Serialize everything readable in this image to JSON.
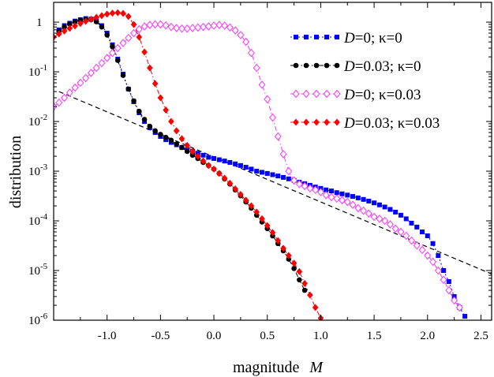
{
  "chart_data": {
    "type": "line",
    "xlabel": "magnitude",
    "xlabel_var": "M",
    "ylabel": "distribution",
    "yscale": "log",
    "xlim": [
      -1.5,
      2.6
    ],
    "ylim": [
      1e-06,
      2.5
    ],
    "xticks": [
      -1.0,
      -0.5,
      0.0,
      0.5,
      1.0,
      1.5,
      2.0,
      2.5
    ],
    "xtick_labels": [
      "-1.0",
      "-0.5",
      "0.0",
      "0.5",
      "1.0",
      "1.5",
      "2.0",
      "2.5"
    ],
    "yticks": [
      1e-06,
      1e-05,
      0.0001,
      0.001,
      0.01,
      0.1,
      1
    ],
    "ytick_labels": [
      {
        "base": "10",
        "exp": "-6"
      },
      {
        "base": "10",
        "exp": "-5"
      },
      {
        "base": "10",
        "exp": "-4"
      },
      {
        "base": "10",
        "exp": "-3"
      },
      {
        "base": "10",
        "exp": "-2"
      },
      {
        "base": "10",
        "exp": "-1"
      },
      {
        "base": "1",
        "exp": ""
      }
    ],
    "grid": false,
    "legend_position": "top-right",
    "series": [
      {
        "name": "D=0; κ=0",
        "legend": {
          "var": "D",
          "rest": "=0; κ=0"
        },
        "color": "#0000ff",
        "marker": "square",
        "linestyle": "dotted",
        "x": [
          -1.45,
          -1.4,
          -1.35,
          -1.3,
          -1.25,
          -1.2,
          -1.15,
          -1.1,
          -1.05,
          -1.0,
          -0.95,
          -0.9,
          -0.85,
          -0.8,
          -0.75,
          -0.7,
          -0.65,
          -0.6,
          -0.55,
          -0.5,
          -0.45,
          -0.4,
          -0.35,
          -0.3,
          -0.25,
          -0.2,
          -0.15,
          -0.1,
          -0.05,
          0.0,
          0.05,
          0.1,
          0.15,
          0.2,
          0.25,
          0.3,
          0.35,
          0.4,
          0.45,
          0.5,
          0.55,
          0.6,
          0.65,
          0.7,
          0.75,
          0.8,
          0.85,
          0.9,
          0.95,
          1.0,
          1.05,
          1.1,
          1.15,
          1.2,
          1.25,
          1.3,
          1.35,
          1.4,
          1.45,
          1.5,
          1.55,
          1.6,
          1.65,
          1.7,
          1.75,
          1.8,
          1.85,
          1.9,
          1.95,
          2.0,
          2.05,
          2.1,
          2.15,
          2.2,
          2.25,
          2.3,
          2.35
        ],
        "y": [
          0.7,
          0.85,
          0.95,
          1.05,
          1.12,
          1.18,
          1.15,
          1.05,
          0.85,
          0.6,
          0.35,
          0.18,
          0.09,
          0.045,
          0.025,
          0.015,
          0.01,
          0.0075,
          0.006,
          0.005,
          0.0043,
          0.0038,
          0.0034,
          0.003,
          0.0027,
          0.0025,
          0.0023,
          0.0021,
          0.0019,
          0.0018,
          0.0017,
          0.0016,
          0.0015,
          0.0014,
          0.0013,
          0.0012,
          0.0011,
          0.001,
          0.00095,
          0.0009,
          0.00085,
          0.0008,
          0.00075,
          0.0007,
          0.00065,
          0.0006,
          0.00056,
          0.00052,
          0.00048,
          0.00045,
          0.00042,
          0.0004,
          0.00037,
          0.00035,
          0.00033,
          0.00031,
          0.00029,
          0.00027,
          0.00025,
          0.00023,
          0.00021,
          0.00019,
          0.00017,
          0.00015,
          0.00013,
          0.00011,
          9e-05,
          7.5e-05,
          6e-05,
          5e-05,
          3.5e-05,
          2e-05,
          1e-05,
          6e-06,
          3e-06,
          1.8e-06,
          1.2e-06
        ]
      },
      {
        "name": "D=0.03; κ=0",
        "legend": {
          "var": "D",
          "rest": "=0.03; κ=0"
        },
        "color": "#000000",
        "marker": "circle",
        "linestyle": "dashdotdot",
        "x": [
          -1.45,
          -1.4,
          -1.35,
          -1.3,
          -1.25,
          -1.2,
          -1.15,
          -1.1,
          -1.05,
          -1.0,
          -0.95,
          -0.9,
          -0.85,
          -0.8,
          -0.75,
          -0.7,
          -0.65,
          -0.6,
          -0.55,
          -0.5,
          -0.45,
          -0.4,
          -0.35,
          -0.3,
          -0.25,
          -0.2,
          -0.15,
          -0.1,
          -0.05,
          0.0,
          0.05,
          0.1,
          0.15,
          0.2,
          0.25,
          0.3,
          0.35,
          0.4,
          0.45,
          0.5,
          0.55,
          0.6,
          0.65,
          0.7,
          0.75,
          0.8,
          0.85
        ],
        "y": [
          0.65,
          0.8,
          0.92,
          1.02,
          1.1,
          1.15,
          1.12,
          1.02,
          0.8,
          0.55,
          0.32,
          0.17,
          0.085,
          0.045,
          0.026,
          0.016,
          0.011,
          0.008,
          0.0065,
          0.0055,
          0.0048,
          0.0042,
          0.0035,
          0.003,
          0.0025,
          0.0021,
          0.0018,
          0.0015,
          0.0013,
          0.0011,
          0.0009,
          0.0007,
          0.00055,
          0.00042,
          0.00032,
          0.00024,
          0.00018,
          0.00013,
          9.5e-05,
          7e-05,
          5e-05,
          3.5e-05,
          2.5e-05,
          1.7e-05,
          1.1e-05,
          6.5e-06,
          4e-06
        ]
      },
      {
        "name": "D=0; κ=0.03",
        "legend": {
          "var": "D",
          "rest": "=0; κ=0.03"
        },
        "color": "#ff33ff",
        "marker": "diamond-open",
        "linestyle": "dashdot",
        "x": [
          -1.5,
          -1.45,
          -1.4,
          -1.35,
          -1.3,
          -1.25,
          -1.2,
          -1.15,
          -1.1,
          -1.05,
          -1.0,
          -0.95,
          -0.9,
          -0.85,
          -0.8,
          -0.75,
          -0.7,
          -0.65,
          -0.6,
          -0.55,
          -0.5,
          -0.45,
          -0.4,
          -0.35,
          -0.3,
          -0.25,
          -0.2,
          -0.15,
          -0.1,
          -0.05,
          0.0,
          0.05,
          0.1,
          0.15,
          0.2,
          0.25,
          0.3,
          0.35,
          0.4,
          0.45,
          0.5,
          0.55,
          0.6,
          0.65,
          0.7,
          0.75,
          0.8,
          0.85,
          0.9,
          0.95,
          1.0,
          1.05,
          1.1,
          1.15,
          1.2,
          1.25,
          1.3,
          1.35,
          1.4,
          1.45,
          1.5,
          1.55,
          1.6,
          1.65,
          1.7,
          1.75,
          1.8,
          1.85,
          1.9,
          1.95,
          2.0,
          2.05,
          2.1,
          2.15,
          2.2,
          2.25,
          2.3
        ],
        "y": [
          0.02,
          0.024,
          0.03,
          0.038,
          0.048,
          0.06,
          0.075,
          0.095,
          0.12,
          0.15,
          0.19,
          0.24,
          0.3,
          0.38,
          0.48,
          0.6,
          0.72,
          0.82,
          0.88,
          0.9,
          0.9,
          0.86,
          0.8,
          0.76,
          0.74,
          0.74,
          0.76,
          0.78,
          0.8,
          0.82,
          0.85,
          0.88,
          0.85,
          0.78,
          0.68,
          0.55,
          0.4,
          0.24,
          0.12,
          0.055,
          0.028,
          0.012,
          0.005,
          0.0022,
          0.001,
          0.00065,
          0.00055,
          0.0005,
          0.00045,
          0.00042,
          0.00038,
          0.00033,
          0.0003,
          0.00028,
          0.00026,
          0.00024,
          0.00021,
          0.00018,
          0.00016,
          0.00014,
          0.00012,
          0.00011,
          0.0001,
          8.5e-05,
          7e-05,
          6e-05,
          5e-05,
          4e-05,
          3.2e-05,
          2.6e-05,
          2e-05,
          1.5e-05,
          1e-05,
          6.5e-06,
          4e-06,
          2.5e-06,
          1.8e-06
        ]
      },
      {
        "name": "D=0.03; κ=0.03",
        "legend": {
          "var": "D",
          "rest": "=0.03; κ=0.03"
        },
        "color": "#ff0000",
        "marker": "diamond",
        "linestyle": "dashdot",
        "x": [
          -1.5,
          -1.45,
          -1.4,
          -1.35,
          -1.3,
          -1.25,
          -1.2,
          -1.15,
          -1.1,
          -1.05,
          -1.0,
          -0.95,
          -0.9,
          -0.85,
          -0.8,
          -0.75,
          -0.7,
          -0.65,
          -0.6,
          -0.55,
          -0.5,
          -0.45,
          -0.4,
          -0.35,
          -0.3,
          -0.25,
          -0.2,
          -0.15,
          -0.1,
          -0.05,
          0.0,
          0.05,
          0.1,
          0.15,
          0.2,
          0.25,
          0.3,
          0.35,
          0.4,
          0.45,
          0.5,
          0.55,
          0.6,
          0.65,
          0.7,
          0.75,
          0.8,
          0.85,
          0.9,
          0.95,
          1.0
        ],
        "y": [
          0.5,
          0.58,
          0.66,
          0.75,
          0.84,
          0.94,
          1.04,
          1.14,
          1.25,
          1.35,
          1.45,
          1.52,
          1.55,
          1.5,
          1.3,
          0.9,
          0.5,
          0.25,
          0.12,
          0.058,
          0.03,
          0.017,
          0.01,
          0.0065,
          0.0045,
          0.0033,
          0.0025,
          0.002,
          0.0016,
          0.0013,
          0.0011,
          0.0009,
          0.00072,
          0.00057,
          0.00044,
          0.00034,
          0.00026,
          0.0002,
          0.00015,
          0.00011,
          8e-05,
          5.8e-05,
          4e-05,
          2.8e-05,
          2e-05,
          1.4e-05,
          9.5e-06,
          5.5e-06,
          3.2e-06,
          1.8e-06,
          1.1e-06
        ]
      }
    ],
    "annotations": [
      {
        "type": "dashed-line",
        "x": [
          -1.45,
          2.6
        ],
        "y": [
          0.04,
          8.5e-06
        ]
      }
    ]
  }
}
